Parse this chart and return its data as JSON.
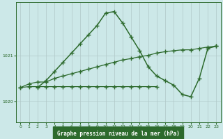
{
  "title": "Graphe pression niveau de la mer (hPa)",
  "background_color": "#cce8e8",
  "plot_bg_color": "#cce8e8",
  "line_color": "#2d6a2d",
  "grid_color": "#b0c8c8",
  "xlabel_bg": "#2d6a2d",
  "xlabel_color": "#ffffff",
  "xlim": [
    -0.5,
    23.5
  ],
  "ylim": [
    1019.55,
    1022.15
  ],
  "yticks": [
    1020,
    1021
  ],
  "xticks": [
    0,
    1,
    2,
    3,
    4,
    5,
    6,
    7,
    8,
    9,
    10,
    11,
    12,
    13,
    14,
    15,
    16,
    17,
    18,
    19,
    20,
    21,
    22,
    23
  ],
  "series_peak_x": [
    2,
    3,
    4,
    5,
    6,
    7,
    8,
    9,
    10,
    11,
    12,
    13,
    14,
    15,
    16,
    17,
    18,
    19,
    20,
    21,
    22,
    23
  ],
  "series_peak_y": [
    1020.3,
    1020.45,
    1020.65,
    1020.85,
    1021.05,
    1021.25,
    1021.45,
    1021.65,
    1021.92,
    1021.95,
    1021.7,
    1021.4,
    1021.1,
    1020.75,
    1020.55,
    1020.45,
    1020.35,
    1020.15,
    1020.1,
    1020.5,
    1021.15,
    1021.2
  ],
  "series_diag_x": [
    0,
    1,
    2,
    3,
    4,
    5,
    6,
    7,
    8,
    9,
    10,
    11,
    12,
    13,
    14,
    15,
    16,
    17,
    18,
    19,
    20,
    21,
    22,
    23
  ],
  "series_diag_y": [
    1020.3,
    1020.38,
    1020.42,
    1020.42,
    1020.5,
    1020.55,
    1020.6,
    1020.65,
    1020.7,
    1020.75,
    1020.8,
    1020.85,
    1020.9,
    1020.93,
    1020.97,
    1021.0,
    1021.05,
    1021.08,
    1021.1,
    1021.12,
    1021.12,
    1021.15,
    1021.18,
    1021.2
  ],
  "series_flat_x": [
    0,
    1,
    2,
    3,
    4,
    5,
    6,
    7,
    8,
    9,
    10,
    11,
    12,
    13,
    14,
    15,
    16
  ],
  "series_flat_y": [
    1020.3,
    1020.32,
    1020.32,
    1020.32,
    1020.32,
    1020.32,
    1020.32,
    1020.32,
    1020.32,
    1020.32,
    1020.32,
    1020.32,
    1020.32,
    1020.32,
    1020.32,
    1020.32,
    1020.32
  ]
}
